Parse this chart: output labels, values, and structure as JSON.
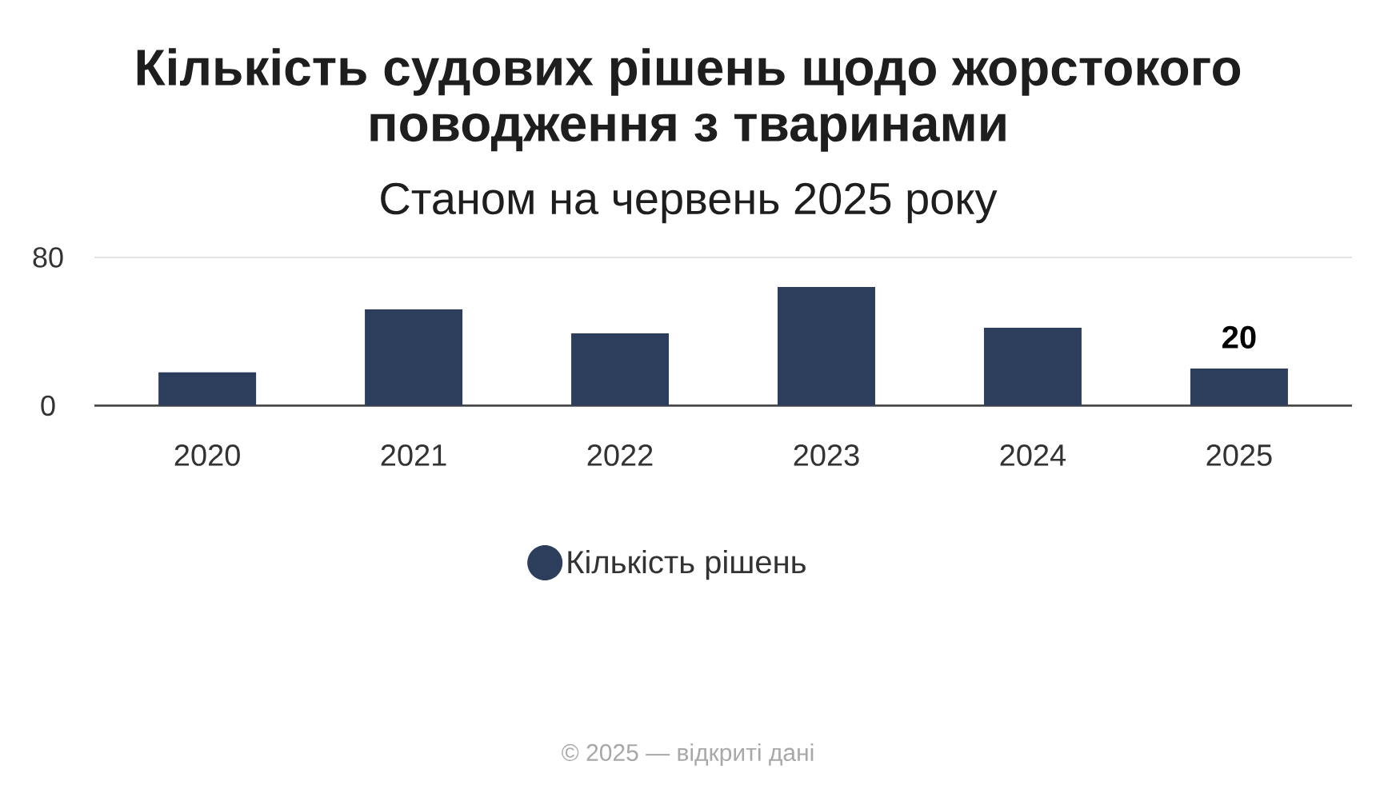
{
  "chart_data": {
    "type": "bar",
    "title": "Кількість судових рішень щодо жорстокого поводження з тваринами",
    "subtitle": "Станом на червень 2025 року",
    "categories": [
      "2020",
      "2021",
      "2022",
      "2023",
      "2024",
      "2025"
    ],
    "series": [
      {
        "name": "Кількість рішень",
        "color": "#2d3e5c",
        "values": [
          18,
          52,
          39,
          64,
          42,
          20
        ],
        "value_labels": [
          null,
          null,
          null,
          null,
          null,
          "20"
        ]
      }
    ],
    "ylim": [
      0,
      80
    ],
    "yticks": [
      0,
      80
    ],
    "grid": "y",
    "legend": "bottom",
    "annotations": [
      "© 2025 — відкриті дані"
    ]
  }
}
